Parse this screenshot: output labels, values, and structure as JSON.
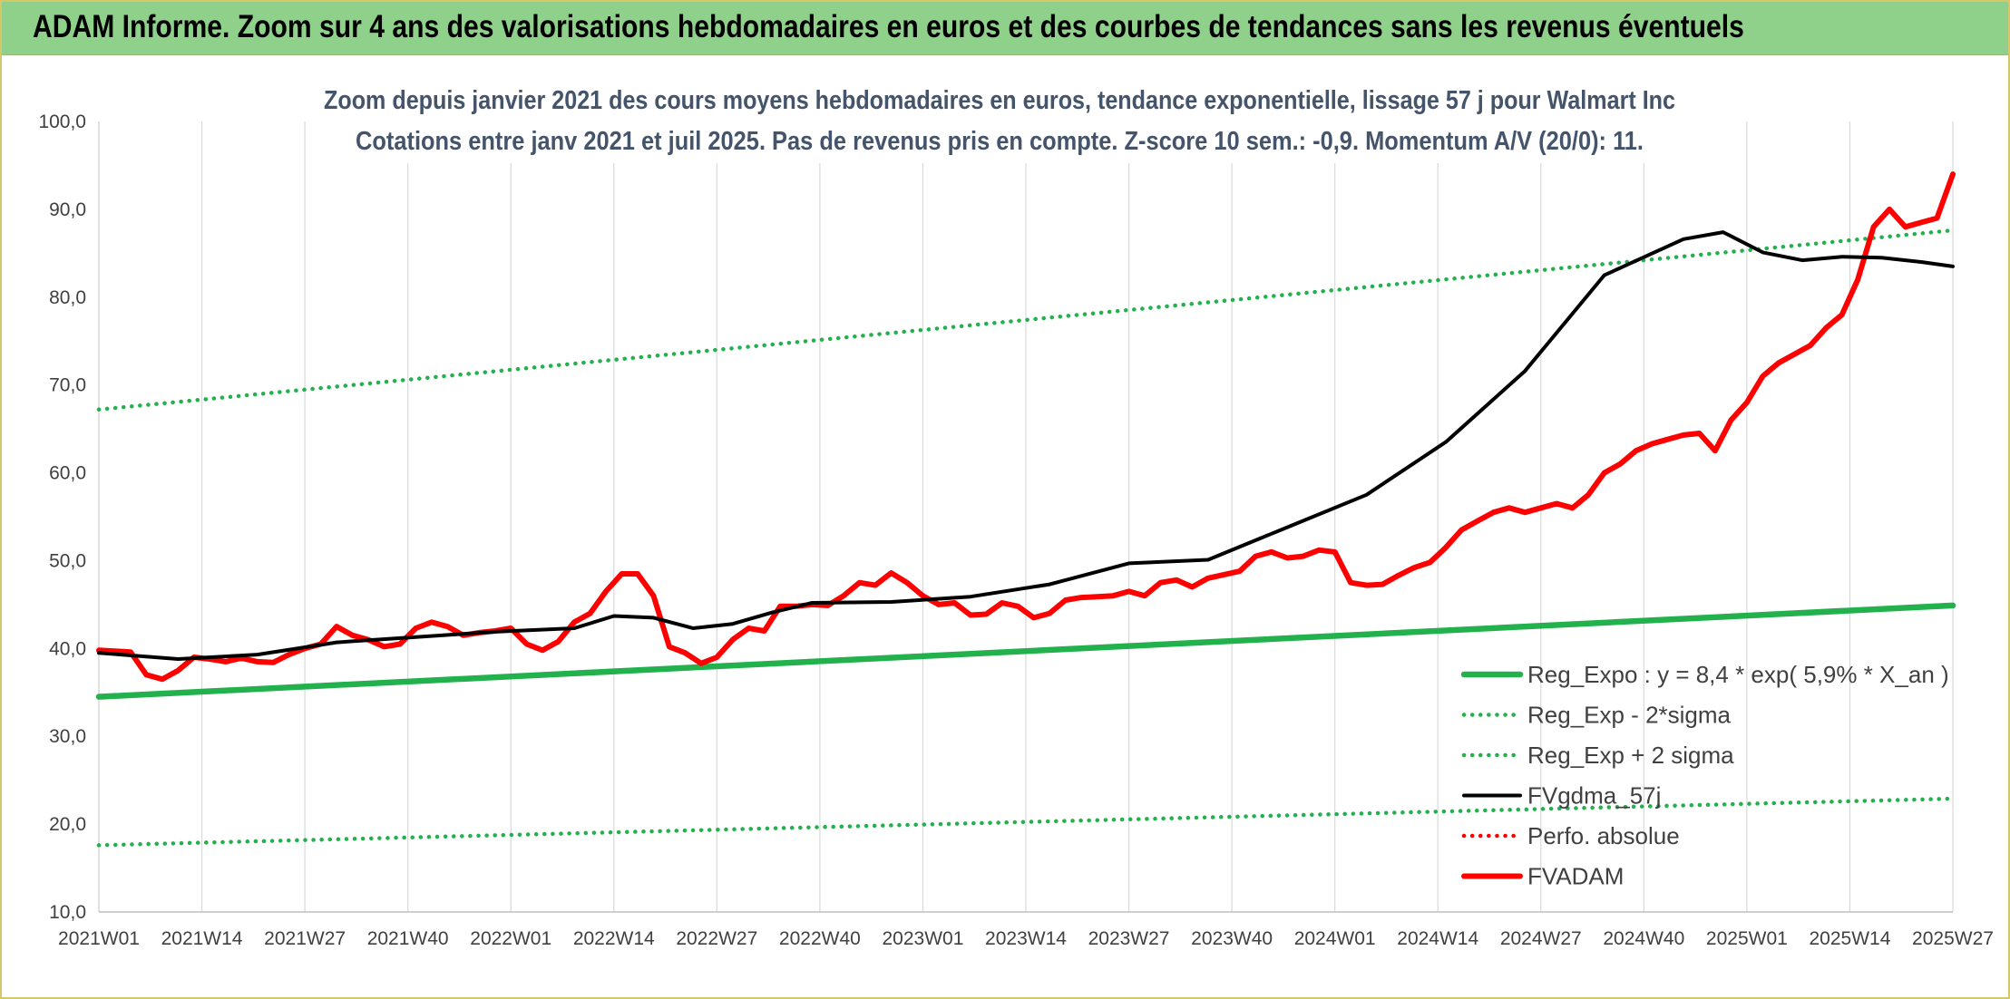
{
  "banner": {
    "title": "ADAM Informe. Zoom sur 4 ans des valorisations hebdomadaires en euros et des courbes de tendances sans les revenus éventuels"
  },
  "chart_data": {
    "type": "line",
    "title": [
      "Zoom depuis janvier 2021 des cours moyens hebdomadaires en euros, tendance exponentielle, lissage 57 j pour Walmart Inc",
      "Cotations entre janv 2021 et juil 2025. Pas de revenus pris en compte. Z-score 10 sem.: -0,9. Momentum A/V (20/0): 11."
    ],
    "xlabel": "",
    "ylabel": "",
    "ylim": [
      10,
      100
    ],
    "y_ticks": [
      "10,0",
      "20,0",
      "30,0",
      "40,0",
      "50,0",
      "60,0",
      "70,0",
      "80,0",
      "90,0",
      "100,0"
    ],
    "x_ticks": [
      "2021W01",
      "2021W14",
      "2021W27",
      "2021W40",
      "2022W01",
      "2022W14",
      "2022W27",
      "2022W40",
      "2023W01",
      "2023W14",
      "2023W27",
      "2023W40",
      "2024W01",
      "2024W14",
      "2024W27",
      "2024W40",
      "2025W01",
      "2025W14",
      "2025W27"
    ],
    "x_unit": "week index (0 = 2021W01, 13 weeks per tick)",
    "x_range": [
      0,
      234
    ],
    "grid": "vertical",
    "legend_position": "bottom-right",
    "series": [
      {
        "name": "Reg_Expo : y = 8,4 * exp( 5,9% *  X_an )",
        "color": "#22b14c",
        "style": "solid-thick",
        "x": [
          0,
          234
        ],
        "y": [
          34.5,
          44.9
        ]
      },
      {
        "name": "Reg_Exp - 2*sigma",
        "color": "#22b14c",
        "style": "dotted",
        "x": [
          0,
          234
        ],
        "y": [
          17.6,
          22.9
        ]
      },
      {
        "name": "Reg_Exp + 2 sigma",
        "color": "#22b14c",
        "style": "dotted",
        "x": [
          0,
          234
        ],
        "y": [
          67.2,
          87.6
        ]
      },
      {
        "name": "FVgdma_57j",
        "color": "#000000",
        "style": "solid",
        "x": [
          0,
          10,
          20,
          30,
          40,
          50,
          60,
          65,
          70,
          75,
          80,
          85,
          90,
          100,
          110,
          120,
          130,
          140,
          150,
          160,
          170,
          180,
          190,
          200,
          205,
          210,
          215,
          220,
          225,
          230,
          234
        ],
        "y": [
          39.5,
          38.8,
          39.3,
          40.7,
          41.3,
          41.9,
          42.3,
          43.7,
          43.5,
          42.3,
          42.8,
          44.1,
          45.2,
          45.3,
          45.9,
          47.3,
          49.7,
          50.1,
          53.8,
          57.5,
          63.5,
          71.6,
          82.5,
          86.6,
          87.4,
          85.1,
          84.2,
          84.6,
          84.5,
          84.0,
          83.5
        ]
      },
      {
        "name": "Perfo. absolue",
        "color": "#ff0000",
        "style": "dotted",
        "x": [],
        "y": []
      },
      {
        "name": "FVADAM",
        "color": "#ff0000",
        "style": "solid-thick",
        "x": [
          0,
          2,
          4,
          6,
          8,
          10,
          12,
          14,
          16,
          18,
          20,
          22,
          24,
          26,
          28,
          30,
          32,
          34,
          36,
          38,
          40,
          42,
          44,
          46,
          48,
          50,
          52,
          54,
          56,
          58,
          60,
          62,
          64,
          66,
          68,
          70,
          72,
          74,
          76,
          78,
          80,
          82,
          84,
          86,
          88,
          90,
          92,
          94,
          96,
          98,
          100,
          102,
          104,
          106,
          108,
          110,
          112,
          114,
          116,
          118,
          120,
          122,
          124,
          126,
          128,
          130,
          132,
          134,
          136,
          138,
          140,
          142,
          144,
          146,
          148,
          150,
          152,
          154,
          156,
          158,
          160,
          162,
          164,
          166,
          168,
          170,
          172,
          174,
          176,
          178,
          180,
          182,
          184,
          186,
          188,
          190,
          192,
          194,
          196,
          198,
          200,
          202,
          204,
          206,
          208,
          210,
          212,
          214,
          216,
          218,
          220,
          222,
          224,
          226,
          228,
          230,
          232,
          234
        ],
        "y": [
          39.8,
          39.7,
          39.6,
          37.0,
          36.5,
          37.5,
          39.0,
          38.8,
          38.5,
          38.9,
          38.5,
          38.4,
          39.3,
          40.0,
          40.5,
          42.5,
          41.5,
          41.0,
          40.2,
          40.5,
          42.3,
          43.0,
          42.5,
          41.5,
          41.8,
          42.0,
          42.3,
          40.5,
          39.8,
          40.8,
          43.0,
          44.0,
          46.5,
          48.5,
          48.5,
          46.0,
          40.2,
          39.5,
          38.3,
          39.0,
          41.0,
          42.3,
          42.0,
          44.8,
          44.8,
          45.0,
          44.9,
          46.0,
          47.5,
          47.2,
          48.6,
          47.5,
          46.0,
          45.0,
          45.2,
          43.8,
          43.9,
          45.2,
          44.8,
          43.5,
          44.0,
          45.5,
          45.8,
          45.9,
          46.0,
          46.5,
          46.0,
          47.5,
          47.8,
          47.0,
          48.0,
          48.4,
          48.8,
          50.5,
          51.0,
          50.3,
          50.5,
          51.2,
          51.0,
          47.5,
          47.2,
          47.3,
          48.3,
          49.2,
          49.8,
          51.5,
          53.5,
          54.5,
          55.5,
          56.0,
          55.5,
          56.0,
          56.5,
          56.0,
          57.5,
          60.0,
          61.0,
          62.5,
          63.3,
          63.8,
          64.3,
          64.5,
          62.5,
          66.0,
          68.0,
          71.0,
          72.5,
          73.5,
          74.5,
          76.5,
          78.0,
          82.0,
          88.0,
          90.0,
          88.0,
          88.5,
          89.0,
          94.0
        ]
      }
    ]
  }
}
